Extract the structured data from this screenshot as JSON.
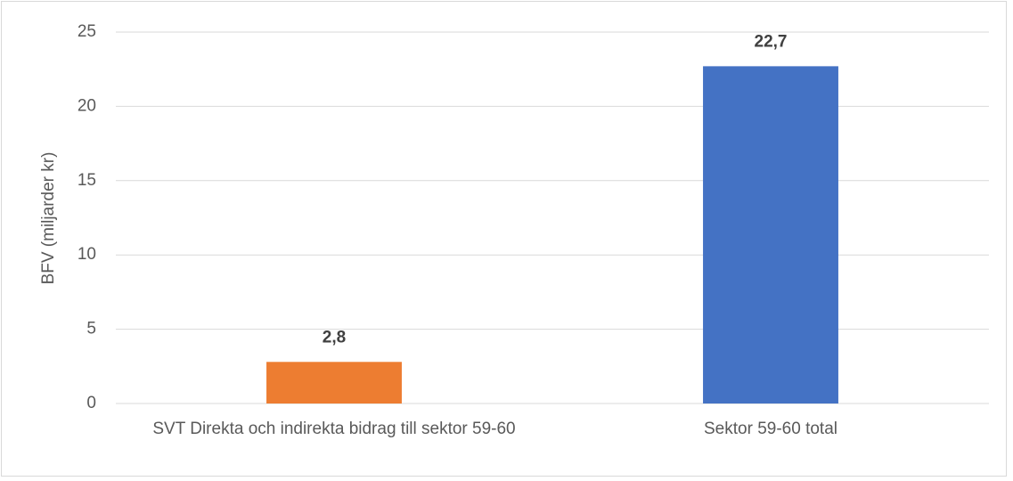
{
  "chart_data": {
    "type": "bar",
    "y_label": "BFV (miljarder kr)",
    "categories": [
      "SVT Direkta och indirekta bidrag till sektor 59-60",
      "Sektor 59-60 total"
    ],
    "values": [
      2.8,
      22.7
    ],
    "value_labels": [
      "2,8",
      "22,7"
    ],
    "colors": [
      "#ed7d31",
      "#4472c4"
    ],
    "ylim": [
      0,
      25
    ],
    "yticks": [
      0,
      5,
      10,
      15,
      20,
      25
    ],
    "grid": true
  }
}
